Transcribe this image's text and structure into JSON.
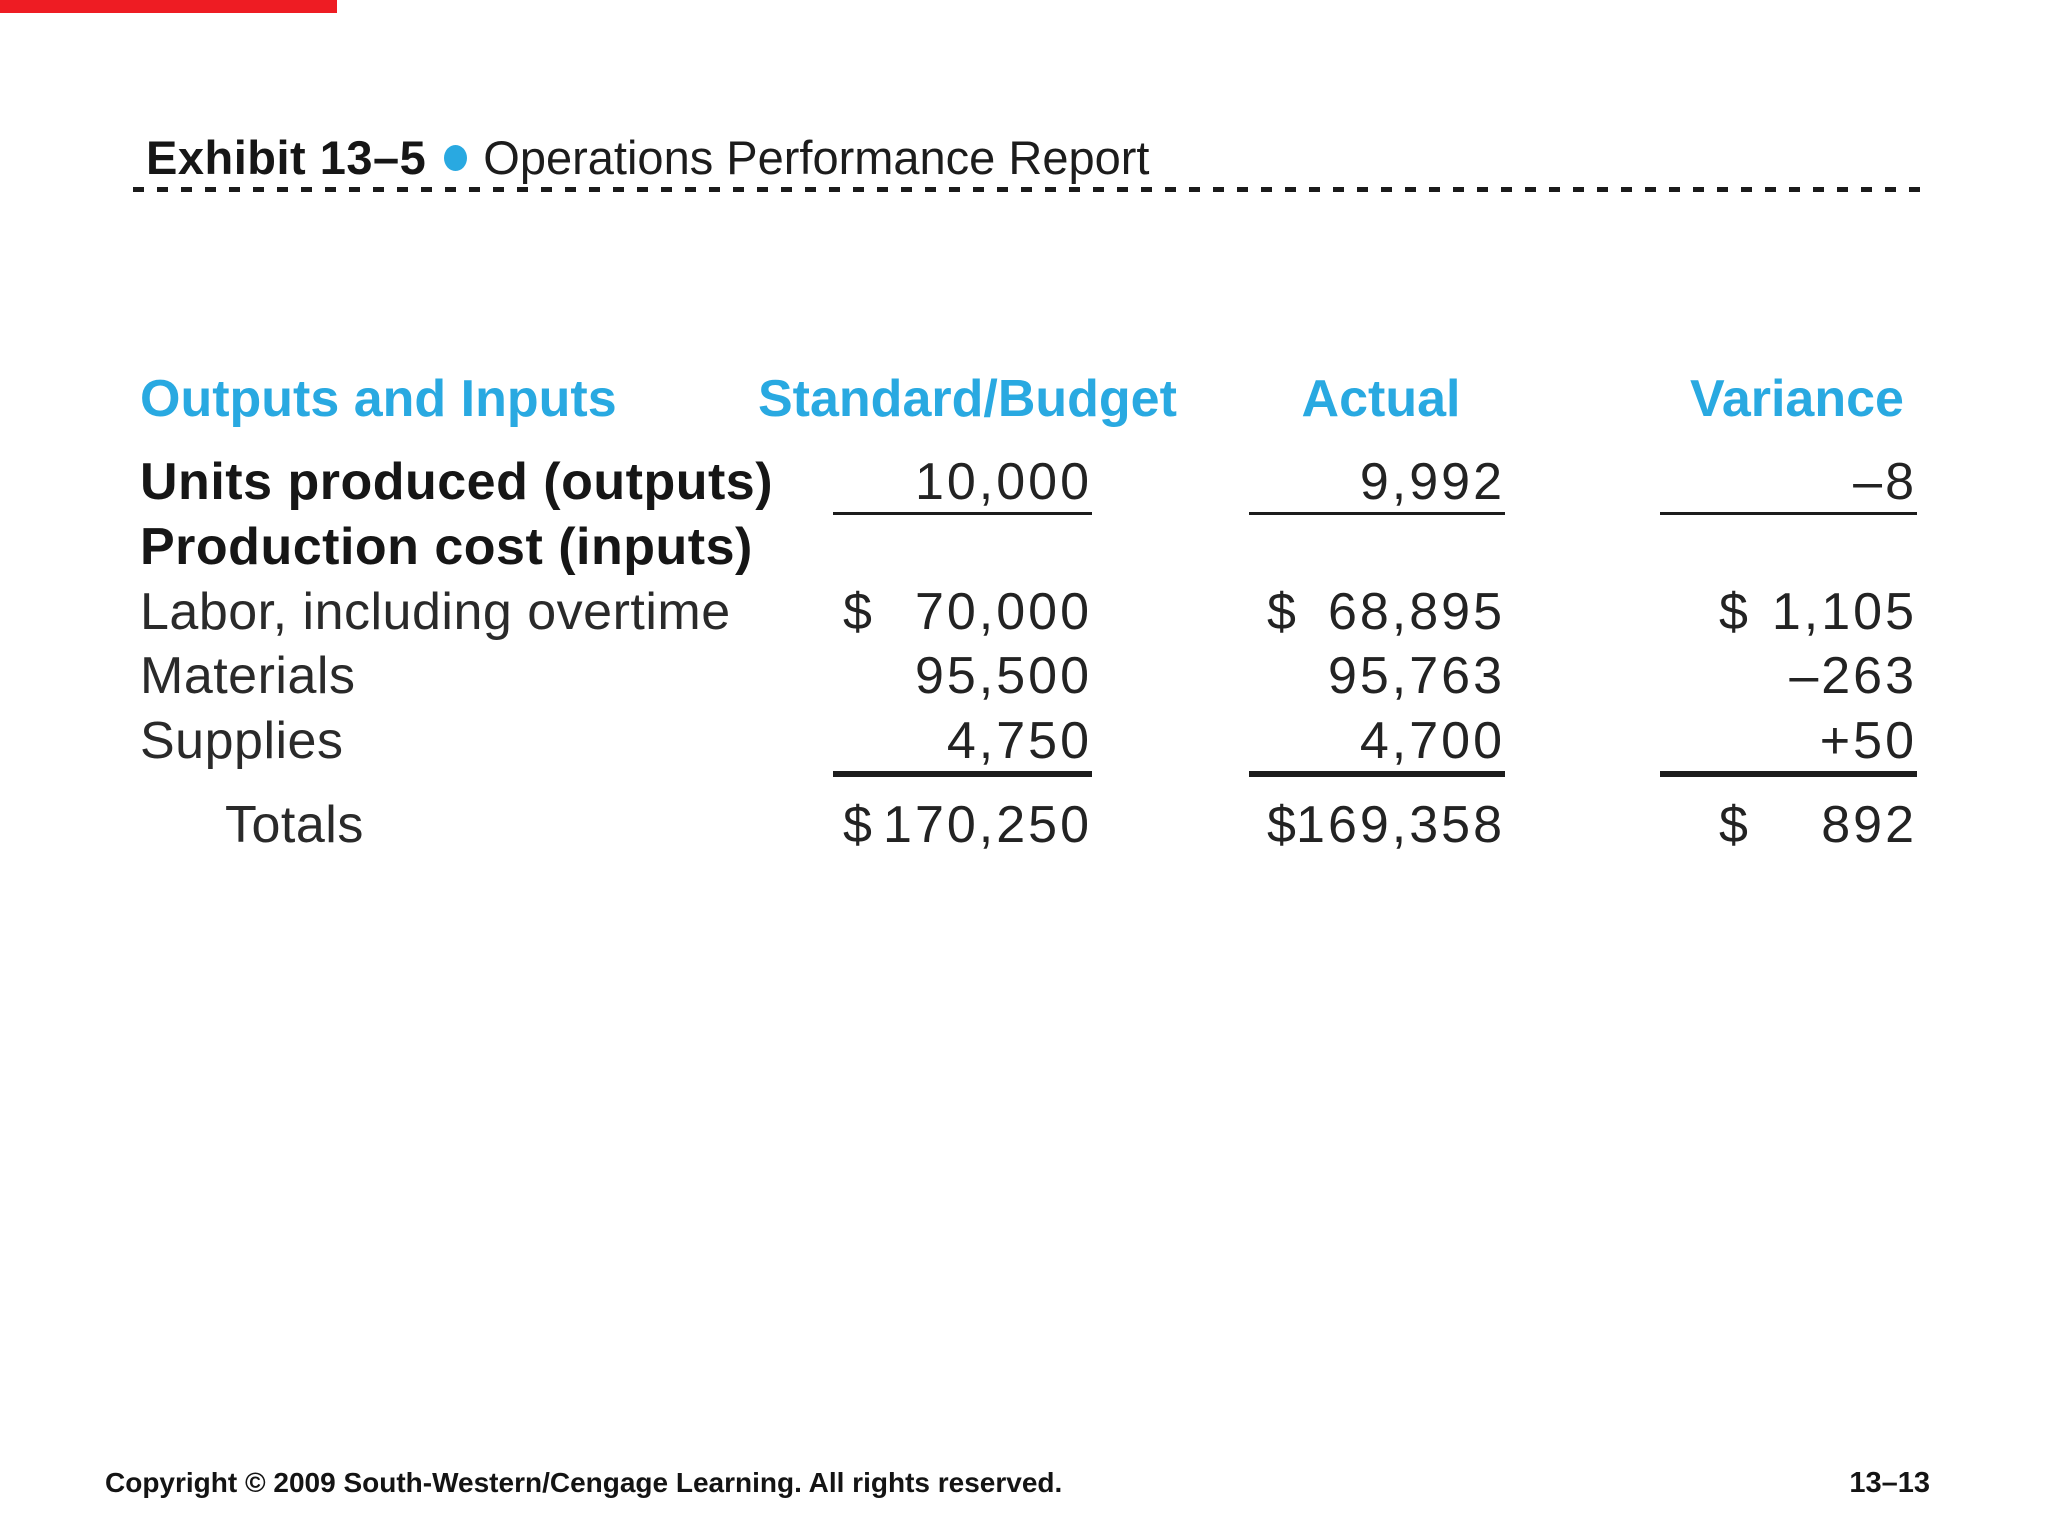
{
  "title": {
    "exhibit": "Exhibit 13–5",
    "text": "Operations Performance Report"
  },
  "colors": {
    "accent_blue": "#29a9e1",
    "accent_red": "#ee1c23"
  },
  "table": {
    "headers": [
      "Outputs and Inputs",
      "Standard/Budget",
      "Actual",
      "Variance"
    ],
    "rows": [
      {
        "label": "Units produced (outputs)",
        "std_cur": "",
        "std": "10,000",
        "act_cur": "",
        "act": "9,992",
        "var_cur": "",
        "var": "–8"
      },
      {
        "label": "Production cost (inputs)",
        "std_cur": "",
        "std": "",
        "act_cur": "",
        "act": "",
        "var_cur": "",
        "var": ""
      },
      {
        "label": "Labor, including overtime",
        "std_cur": "$",
        "std": "70,000",
        "act_cur": "$",
        "act": "68,895",
        "var_cur": "$",
        "var": "1,105"
      },
      {
        "label": "Materials",
        "std_cur": "",
        "std": "95,500",
        "act_cur": "",
        "act": "95,763",
        "var_cur": "",
        "var": "–263"
      },
      {
        "label": "Supplies",
        "std_cur": "",
        "std": "4,750",
        "act_cur": "",
        "act": "4,700",
        "var_cur": "",
        "var": "+50"
      },
      {
        "label": "Totals",
        "std_cur": "$",
        "std": "170,250",
        "act_cur": "$",
        "act": "169,358",
        "var_cur": "$",
        "var": "892"
      }
    ]
  },
  "footer": {
    "copyright": "Copyright © 2009 South-Western/Cengage Learning. All rights reserved.",
    "page": "13–13"
  }
}
